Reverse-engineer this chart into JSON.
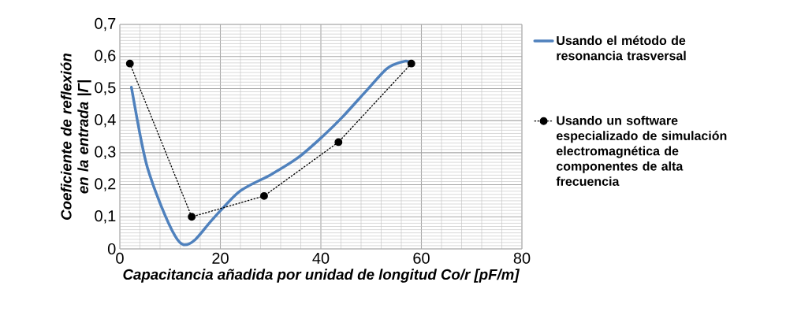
{
  "chart_data": {
    "type": "line",
    "xlabel": "Capacitancia añadida por unidad de longitud Co/r  [pF/m]",
    "ylabel": "Coeficiente de reflexión en la entrada |Γ|",
    "xlim": [
      0,
      80
    ],
    "xticks": [
      0,
      20,
      40,
      60,
      80
    ],
    "ylim": [
      0,
      0.7
    ],
    "yticks": [
      0,
      {
        "value": 0.1,
        "label": "0,1"
      },
      {
        "value": 0.2,
        "label": "0,2"
      },
      {
        "value": 0.3,
        "label": "0,3"
      },
      {
        "value": 0.4,
        "label": "0,4"
      },
      {
        "value": 0.5,
        "label": "0,5"
      },
      {
        "value": 0.6,
        "label": "0,6"
      },
      {
        "value": 0.7,
        "label": "0,7"
      }
    ],
    "grid": true,
    "legend": "right",
    "series": [
      {
        "name": "Usando el método de resonancia trasversal",
        "color": "#4f81bd",
        "marker": "none",
        "line_style": "solid",
        "x": [
          2.3,
          4.1,
          5.5,
          8.2,
          11,
          12.7,
          15,
          18.5,
          23.9,
          30,
          35.5,
          40.3,
          44.4,
          49.1,
          53.2,
          56.6,
          58
        ],
        "values": [
          0.504,
          0.35,
          0.253,
          0.135,
          0.04,
          0.013,
          0.029,
          0.093,
          0.18,
          0.231,
          0.285,
          0.35,
          0.413,
          0.494,
          0.563,
          0.585,
          0.58
        ]
      },
      {
        "name": "Usando un software especializado de simulación electromagnética de componentes de alta frecuencia",
        "color": "#000000",
        "marker": "circle",
        "line_style": "dotted",
        "x": [
          2,
          14.3,
          28.7,
          43.5,
          58
        ],
        "values": [
          0.578,
          0.1,
          0.165,
          0.333,
          0.578
        ]
      }
    ]
  }
}
